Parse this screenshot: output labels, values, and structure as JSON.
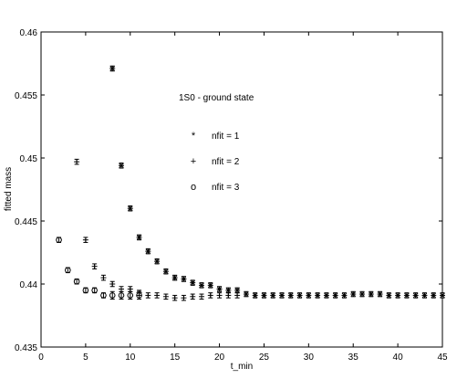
{
  "chart_data": {
    "type": "scatter",
    "title": "",
    "xlabel": "t_min",
    "ylabel": "fitted mass",
    "xlim": [
      0,
      45
    ],
    "ylim": [
      0.435,
      0.46
    ],
    "x_ticks": [
      0,
      5,
      10,
      15,
      20,
      25,
      30,
      35,
      40,
      45
    ],
    "y_ticks": [
      0.435,
      0.44,
      0.445,
      0.45,
      0.455,
      0.46
    ],
    "x_tick_labels": [
      "0",
      "5",
      "10",
      "15",
      "20",
      "25",
      "30",
      "35",
      "40",
      "45"
    ],
    "y_tick_labels": [
      "0.435",
      "0.44",
      "0.445",
      "0.45",
      "0.455",
      "0.46"
    ],
    "grid": false,
    "legend_position": "upper-center",
    "annotation": "1S0 - ground state",
    "series": [
      {
        "name": "nfit = 1",
        "marker": "*",
        "points": [
          {
            "x": 8,
            "y": 0.4571,
            "err": 0.0002
          },
          {
            "x": 9,
            "y": 0.4494,
            "err": 0.0002
          },
          {
            "x": 10,
            "y": 0.446,
            "err": 0.0002
          },
          {
            "x": 11,
            "y": 0.4437,
            "err": 0.0002
          },
          {
            "x": 12,
            "y": 0.4426,
            "err": 0.0002
          },
          {
            "x": 13,
            "y": 0.4418,
            "err": 0.0002
          },
          {
            "x": 14,
            "y": 0.441,
            "err": 0.0002
          },
          {
            "x": 15,
            "y": 0.4405,
            "err": 0.0002
          },
          {
            "x": 16,
            "y": 0.4404,
            "err": 0.0002
          },
          {
            "x": 17,
            "y": 0.4401,
            "err": 0.0002
          },
          {
            "x": 18,
            "y": 0.4399,
            "err": 0.0002
          },
          {
            "x": 19,
            "y": 0.4399,
            "err": 0.0002
          },
          {
            "x": 20,
            "y": 0.4396,
            "err": 0.0002
          },
          {
            "x": 21,
            "y": 0.4395,
            "err": 0.0002
          },
          {
            "x": 22,
            "y": 0.4395,
            "err": 0.0002
          },
          {
            "x": 23,
            "y": 0.4392,
            "err": 0.0002
          },
          {
            "x": 24,
            "y": 0.4391,
            "err": 0.0002
          },
          {
            "x": 25,
            "y": 0.4391,
            "err": 0.0002
          },
          {
            "x": 26,
            "y": 0.4391,
            "err": 0.0002
          },
          {
            "x": 27,
            "y": 0.4391,
            "err": 0.0002
          },
          {
            "x": 28,
            "y": 0.4391,
            "err": 0.0002
          },
          {
            "x": 29,
            "y": 0.4391,
            "err": 0.0002
          },
          {
            "x": 30,
            "y": 0.4391,
            "err": 0.0002
          },
          {
            "x": 31,
            "y": 0.4391,
            "err": 0.0002
          },
          {
            "x": 32,
            "y": 0.4391,
            "err": 0.0002
          },
          {
            "x": 33,
            "y": 0.4391,
            "err": 0.0002
          },
          {
            "x": 34,
            "y": 0.4391,
            "err": 0.0002
          },
          {
            "x": 35,
            "y": 0.4392,
            "err": 0.0002
          },
          {
            "x": 36,
            "y": 0.4392,
            "err": 0.0002
          },
          {
            "x": 37,
            "y": 0.4392,
            "err": 0.0002
          },
          {
            "x": 38,
            "y": 0.4392,
            "err": 0.0002
          },
          {
            "x": 39,
            "y": 0.4391,
            "err": 0.0002
          },
          {
            "x": 40,
            "y": 0.4391,
            "err": 0.0002
          },
          {
            "x": 41,
            "y": 0.4391,
            "err": 0.0002
          },
          {
            "x": 42,
            "y": 0.4391,
            "err": 0.0002
          },
          {
            "x": 43,
            "y": 0.4391,
            "err": 0.0002
          },
          {
            "x": 44,
            "y": 0.4391,
            "err": 0.0002
          },
          {
            "x": 45,
            "y": 0.4391,
            "err": 0.0002
          }
        ]
      },
      {
        "name": "nfit = 2",
        "marker": "+",
        "points": [
          {
            "x": 4,
            "y": 0.4497,
            "err": 0.0002
          },
          {
            "x": 5,
            "y": 0.4435,
            "err": 0.0002
          },
          {
            "x": 6,
            "y": 0.4414,
            "err": 0.0002
          },
          {
            "x": 7,
            "y": 0.4405,
            "err": 0.0002
          },
          {
            "x": 8,
            "y": 0.44,
            "err": 0.0002
          },
          {
            "x": 9,
            "y": 0.4396,
            "err": 0.0002
          },
          {
            "x": 10,
            "y": 0.4396,
            "err": 0.0002
          },
          {
            "x": 11,
            "y": 0.4393,
            "err": 0.0002
          },
          {
            "x": 12,
            "y": 0.4391,
            "err": 0.0002
          },
          {
            "x": 13,
            "y": 0.4391,
            "err": 0.0002
          },
          {
            "x": 14,
            "y": 0.439,
            "err": 0.0002
          },
          {
            "x": 15,
            "y": 0.4389,
            "err": 0.0002
          },
          {
            "x": 16,
            "y": 0.4389,
            "err": 0.0002
          },
          {
            "x": 17,
            "y": 0.439,
            "err": 0.0002
          },
          {
            "x": 18,
            "y": 0.439,
            "err": 0.0002
          },
          {
            "x": 19,
            "y": 0.4391,
            "err": 0.0002
          },
          {
            "x": 20,
            "y": 0.4391,
            "err": 0.0002
          },
          {
            "x": 21,
            "y": 0.4391,
            "err": 0.0002
          },
          {
            "x": 22,
            "y": 0.4391,
            "err": 0.0002
          }
        ]
      },
      {
        "name": "nfit = 3",
        "marker": "o",
        "points": [
          {
            "x": 2,
            "y": 0.4435,
            "err": 0.0002
          },
          {
            "x": 3,
            "y": 0.4411,
            "err": 0.0002
          },
          {
            "x": 4,
            "y": 0.4402,
            "err": 0.0002
          },
          {
            "x": 5,
            "y": 0.4395,
            "err": 0.0002
          },
          {
            "x": 6,
            "y": 0.4395,
            "err": 0.0002
          },
          {
            "x": 7,
            "y": 0.4391,
            "err": 0.0002
          },
          {
            "x": 8,
            "y": 0.4391,
            "err": 0.0003
          },
          {
            "x": 9,
            "y": 0.4391,
            "err": 0.0003
          },
          {
            "x": 10,
            "y": 0.4391,
            "err": 0.0003
          },
          {
            "x": 11,
            "y": 0.4391,
            "err": 0.0003
          }
        ]
      }
    ]
  }
}
